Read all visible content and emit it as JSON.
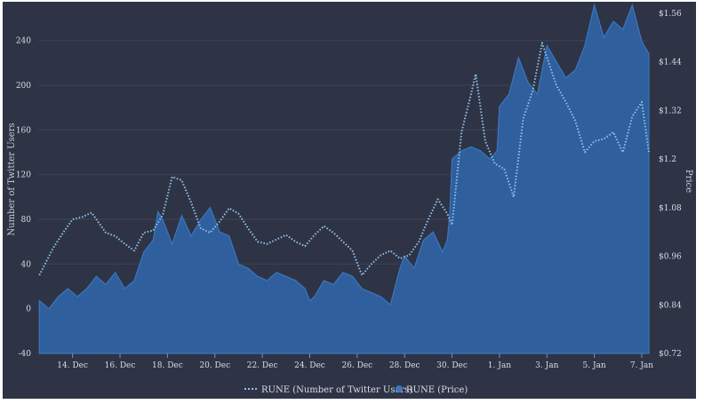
{
  "chart_data": {
    "type": "area",
    "title": "",
    "y_left_label": "Number of Twitter Users",
    "y_right_label": "Price",
    "y_left_ticks": [
      "-40",
      "0",
      "40",
      "80",
      "120",
      "160",
      "200",
      "240"
    ],
    "y_left_range": [
      -40,
      270
    ],
    "y_right_ticks": [
      "$0.72",
      "$0.84",
      "$0.96",
      "$1.08",
      "$1.2",
      "$1.32",
      "$1.44",
      "$1.56"
    ],
    "y_right_range": [
      0.72,
      1.575
    ],
    "x_ticks": [
      "14. Dec",
      "16. Dec",
      "18. Dec",
      "20. Dec",
      "22. Dec",
      "24. Dec",
      "26. Dec",
      "28. Dec",
      "30. Dec",
      "1. Jan",
      "3. Jan",
      "5. Jan",
      "7. Jan"
    ],
    "x_range_days": [
      12.55,
      38.3
    ],
    "legend_position": "bottom-center",
    "colors": {
      "twitter_users": "#8fc2ee",
      "price_fill": "#2f5f9c",
      "price_edge": "#3c76bf",
      "background": "#2e3445",
      "grid": "#3c4356"
    },
    "series": [
      {
        "name": "RUNE (Number of Twitter Users)",
        "axis": "left",
        "style": "dotted-line",
        "x": [
          "12.6 Dec",
          "13.2 Dec",
          "13.6 Dec",
          "14.0 Dec",
          "14.4 Dec",
          "14.8 Dec",
          "15.0 Dec",
          "15.4 Dec",
          "15.8 Dec",
          "16.2 Dec",
          "16.6 Dec",
          "17.0 Dec",
          "17.4 Dec",
          "17.8 Dec",
          "18.2 Dec",
          "18.6 Dec",
          "19.0 Dec",
          "19.4 Dec",
          "19.8 Dec",
          "20.2 Dec",
          "20.6 Dec",
          "21.0 Dec",
          "21.4 Dec",
          "21.8 Dec",
          "22.2 Dec",
          "22.6 Dec",
          "23.0 Dec",
          "23.4 Dec",
          "23.8 Dec",
          "24.2 Dec",
          "24.6 Dec",
          "25.0 Dec",
          "25.4 Dec",
          "25.8 Dec",
          "26.2 Dec",
          "26.6 Dec",
          "27.0 Dec",
          "27.4 Dec",
          "27.8 Dec",
          "28.2 Dec",
          "28.6 Dec",
          "29.0 Dec",
          "29.4 Dec",
          "29.8 Dec",
          "30.0 Dec",
          "30.4 Dec",
          "30.8 Dec",
          "31.0 Dec",
          "31.4 Dec",
          "31.8 Dec",
          "32.2 Dec",
          "32.6 Dec",
          "33.0 Dec",
          "33.4 Dec",
          "33.8 Dec",
          "34.0 Dec",
          "34.4 Dec",
          "34.8 Dec",
          "35.2 Dec",
          "35.6 Dec",
          "36.0 Dec",
          "36.4 Dec",
          "36.8 Dec",
          "37.2 Dec",
          "37.6 Dec",
          "38.0 Dec",
          "38.3 Dec"
        ],
        "values": [
          30,
          55,
          68,
          80,
          82,
          86,
          80,
          68,
          65,
          58,
          52,
          68,
          70,
          84,
          118,
          115,
          95,
          72,
          68,
          78,
          90,
          85,
          72,
          60,
          58,
          62,
          66,
          60,
          56,
          66,
          74,
          68,
          60,
          52,
          30,
          40,
          48,
          52,
          45,
          48,
          60,
          80,
          98,
          85,
          75,
          158,
          192,
          210,
          150,
          130,
          125,
          100,
          170,
          195,
          238,
          225,
          200,
          185,
          168,
          140,
          150,
          152,
          158,
          140,
          172,
          185,
          140
        ]
      },
      {
        "name": "RUNE (Price)",
        "axis": "right",
        "style": "area",
        "x": [
          "12.6 Dec",
          "13.0 Dec",
          "13.4 Dec",
          "13.8 Dec",
          "14.2 Dec",
          "14.6 Dec",
          "15.0 Dec",
          "15.4 Dec",
          "15.8 Dec",
          "16.2 Dec",
          "16.6 Dec",
          "17.0 Dec",
          "17.4 Dec",
          "17.6 Dec",
          "17.8 Dec",
          "18.2 Dec",
          "18.6 Dec",
          "19.0 Dec",
          "19.4 Dec",
          "19.8 Dec",
          "20.2 Dec",
          "20.6 Dec",
          "21.0 Dec",
          "21.4 Dec",
          "21.8 Dec",
          "22.2 Dec",
          "22.6 Dec",
          "23.0 Dec",
          "23.4 Dec",
          "23.8 Dec",
          "24.0 Dec",
          "24.2 Dec",
          "24.6 Dec",
          "25.0 Dec",
          "25.4 Dec",
          "25.8 Dec",
          "26.2 Dec",
          "26.6 Dec",
          "27.0 Dec",
          "27.4 Dec",
          "27.8 Dec",
          "28.0 Dec",
          "28.4 Dec",
          "28.8 Dec",
          "29.2 Dec",
          "29.6 Dec",
          "29.8 Dec",
          "29.9 Dec",
          "30.0 Dec",
          "30.4 Dec",
          "30.8 Dec",
          "31.2 Dec",
          "31.6 Dec",
          "31.9 Dec",
          "32.0 Dec",
          "32.4 Dec",
          "32.8 Dec",
          "33.2 Dec",
          "33.6 Dec",
          "34.0 Dec",
          "34.4 Dec",
          "34.8 Dec",
          "35.2 Dec",
          "35.6 Dec",
          "36.0 Dec",
          "36.4 Dec",
          "36.8 Dec",
          "37.2 Dec",
          "37.6 Dec",
          "38.0 Dec",
          "38.3 Dec"
        ],
        "values": [
          0.85,
          0.83,
          0.86,
          0.88,
          0.86,
          0.88,
          0.91,
          0.89,
          0.92,
          0.88,
          0.9,
          0.97,
          1.0,
          1.07,
          1.05,
          0.99,
          1.06,
          1.01,
          1.05,
          1.08,
          1.02,
          1.01,
          0.94,
          0.93,
          0.91,
          0.9,
          0.92,
          0.91,
          0.9,
          0.88,
          0.85,
          0.86,
          0.9,
          0.89,
          0.92,
          0.91,
          0.88,
          0.87,
          0.86,
          0.84,
          0.93,
          0.96,
          0.93,
          1.0,
          1.02,
          0.97,
          1.0,
          1.06,
          1.2,
          1.22,
          1.23,
          1.22,
          1.2,
          1.22,
          1.33,
          1.36,
          1.45,
          1.39,
          1.36,
          1.48,
          1.44,
          1.4,
          1.42,
          1.48,
          1.58,
          1.5,
          1.54,
          1.52,
          1.58,
          1.49,
          1.46
        ]
      }
    ]
  }
}
